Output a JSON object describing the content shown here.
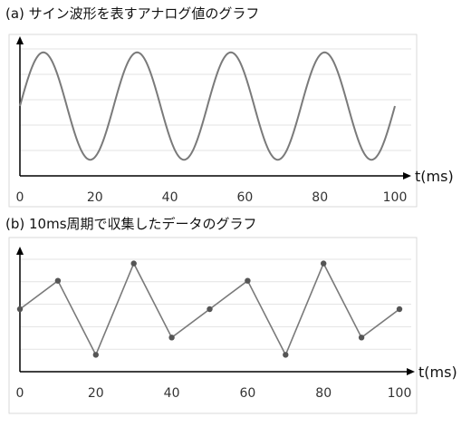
{
  "panels": [
    {
      "title": "(a) サイン波形を表すアナログ値のグラフ",
      "x_unit_label": "t(ms)",
      "x_ticks": [
        "0",
        "20",
        "40",
        "60",
        "80",
        "100"
      ]
    },
    {
      "title": "(b) 10ms周期で収集したデータのグラフ",
      "x_unit_label": "t(ms)",
      "x_ticks": [
        "0",
        "20",
        "40",
        "60",
        "80",
        "100"
      ]
    }
  ],
  "colors": {
    "line": "#7a7a7a",
    "point": "#555555",
    "axis": "#000000",
    "grid": "#e3e3e3",
    "frame": "#d9d9d9"
  },
  "chart_data": [
    {
      "type": "line",
      "title": "(a) サイン波形を表すアナログ値のグラフ",
      "xlabel": "t(ms)",
      "ylabel": "",
      "xlim": [
        0,
        100
      ],
      "ylim": [
        -1.3,
        1.3
      ],
      "grid": true,
      "function": "sine",
      "amplitude": 1,
      "period_ms": 25,
      "phase_shift_ms": 0,
      "x_ticks": [
        0,
        20,
        40,
        60,
        80,
        100
      ]
    },
    {
      "type": "line",
      "title": "(b) 10ms周期で収集したデータのグラフ",
      "xlabel": "t(ms)",
      "ylabel": "",
      "xlim": [
        0,
        100
      ],
      "ylim": [
        -1.3,
        1.3
      ],
      "grid": true,
      "markers": true,
      "x": [
        0,
        10,
        20,
        30,
        40,
        50,
        60,
        70,
        80,
        90,
        100
      ],
      "y": [
        0.0,
        0.59,
        -0.95,
        0.95,
        -0.59,
        0.0,
        0.59,
        -0.95,
        0.95,
        -0.59,
        0.0
      ],
      "x_ticks": [
        0,
        20,
        40,
        60,
        80,
        100
      ]
    }
  ]
}
